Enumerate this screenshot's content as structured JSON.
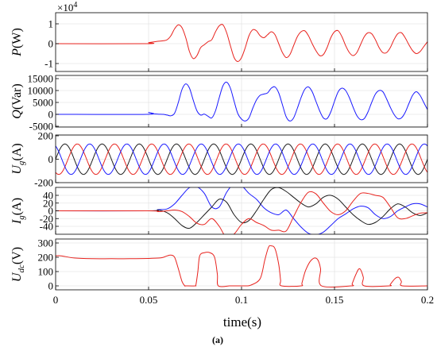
{
  "figure": {
    "caption": "(a)",
    "xlabel": "time(s)"
  },
  "colors": {
    "red": "#e8231e",
    "blue": "#1a1aff",
    "black": "#1a1a1a"
  },
  "chart_data": [
    {
      "type": "line",
      "ylabel_main": "P",
      "ylabel_unit": "(W)",
      "multiplier_base": "×10",
      "multiplier_exp": "4",
      "xlim": [
        0,
        0.2
      ],
      "ylim": [
        -1,
        1
      ],
      "yticks": [
        "1",
        "0",
        "-1"
      ],
      "grid": true,
      "series": [
        {
          "color": "red",
          "x": [
            0,
            0.049,
            0.05,
            0.052,
            0.055,
            0.058,
            0.06,
            0.062,
            0.064,
            0.066,
            0.068,
            0.07,
            0.072,
            0.074,
            0.076,
            0.078,
            0.08,
            0.082,
            0.084,
            0.086,
            0.088,
            0.09,
            0.092,
            0.094,
            0.096,
            0.098,
            0.1,
            0.102,
            0.104,
            0.106,
            0.108,
            0.11,
            0.112,
            0.114,
            0.116,
            0.118,
            0.12,
            0.122,
            0.124,
            0.126,
            0.128,
            0.13,
            0.132,
            0.134,
            0.136,
            0.138,
            0.14,
            0.142,
            0.144,
            0.146,
            0.148,
            0.15,
            0.152,
            0.154,
            0.156,
            0.158,
            0.16,
            0.162,
            0.164,
            0.166,
            0.168,
            0.17,
            0.172,
            0.174,
            0.176,
            0.178,
            0.18,
            0.182,
            0.184,
            0.186,
            0.188,
            0.19,
            0.192,
            0.194,
            0.196,
            0.198,
            0.2
          ],
          "y": [
            0,
            0,
            0.05,
            0.08,
            0.12,
            0.15,
            0.2,
            0.4,
            0.75,
            0.95,
            0.8,
            0.3,
            -0.4,
            -0.75,
            -0.6,
            -0.2,
            -0.05,
            0.1,
            0.2,
            0.6,
            0.9,
            0.95,
            0.55,
            -0.1,
            -0.7,
            -0.9,
            -0.7,
            -0.2,
            0.4,
            0.7,
            0.65,
            0.4,
            0.3,
            0.45,
            0.6,
            0.45,
            0.0,
            -0.45,
            -0.7,
            -0.55,
            -0.1,
            0.35,
            0.6,
            0.65,
            0.4,
            0.0,
            -0.35,
            -0.6,
            -0.55,
            -0.2,
            0.3,
            0.6,
            0.65,
            0.35,
            -0.1,
            -0.45,
            -0.6,
            -0.45,
            -0.05,
            0.35,
            0.55,
            0.5,
            0.2,
            -0.2,
            -0.45,
            -0.45,
            -0.2,
            0.2,
            0.5,
            0.55,
            0.3,
            -0.05,
            -0.35,
            -0.5,
            -0.4,
            -0.15,
            0.1
          ]
        }
      ]
    },
    {
      "type": "line",
      "ylabel_main": "Q",
      "ylabel_unit": "(Var)",
      "xlim": [
        0,
        0.2
      ],
      "ylim": [
        -5000,
        15000
      ],
      "yticks": [
        "15000",
        "10000",
        "5000",
        "0",
        "-5000"
      ],
      "grid": true,
      "series": [
        {
          "color": "blue",
          "x": [
            0,
            0.049,
            0.05,
            0.052,
            0.055,
            0.058,
            0.06,
            0.062,
            0.064,
            0.066,
            0.068,
            0.07,
            0.072,
            0.074,
            0.076,
            0.078,
            0.08,
            0.082,
            0.084,
            0.086,
            0.088,
            0.09,
            0.092,
            0.094,
            0.096,
            0.098,
            0.1,
            0.102,
            0.104,
            0.106,
            0.108,
            0.11,
            0.112,
            0.114,
            0.116,
            0.118,
            0.12,
            0.122,
            0.124,
            0.126,
            0.128,
            0.13,
            0.132,
            0.134,
            0.136,
            0.138,
            0.14,
            0.142,
            0.144,
            0.146,
            0.148,
            0.15,
            0.152,
            0.154,
            0.156,
            0.158,
            0.16,
            0.162,
            0.164,
            0.166,
            0.168,
            0.17,
            0.172,
            0.174,
            0.176,
            0.178,
            0.18,
            0.182,
            0.184,
            0.186,
            0.188,
            0.19,
            0.192,
            0.194,
            0.196,
            0.198,
            0.2
          ],
          "y": [
            0,
            0,
            800,
            300,
            100,
            0,
            -300,
            -600,
            500,
            5000,
            10500,
            12800,
            11000,
            6000,
            1500,
            -300,
            100,
            -800,
            -1500,
            1500,
            7000,
            12000,
            13500,
            11000,
            5500,
            300,
            -2000,
            -2800,
            -1500,
            2500,
            6000,
            8000,
            8500,
            9000,
            11000,
            11500,
            9000,
            4000,
            -1000,
            -2800,
            -1500,
            2500,
            7000,
            10500,
            11500,
            9500,
            5500,
            1500,
            -1500,
            -1800,
            1000,
            5500,
            9500,
            11000,
            10000,
            7000,
            3000,
            -500,
            -2200,
            -1800,
            1000,
            5000,
            8500,
            10000,
            9500,
            6500,
            3000,
            0,
            -1800,
            -1500,
            800,
            4500,
            8000,
            9500,
            8000,
            5000,
            2000
          ]
        }
      ]
    },
    {
      "type": "line",
      "ylabel_main": "U",
      "ylabel_sub": "g",
      "ylabel_unit": "(A)",
      "xlim": [
        0,
        0.2
      ],
      "ylim": [
        -200,
        200
      ],
      "yticks": [
        "200",
        "0",
        "-200"
      ],
      "grid": true,
      "sinusoid": {
        "amplitude": 130,
        "frequency_hz": 50,
        "phases_deg": [
          0,
          -120,
          120
        ]
      },
      "series": [
        {
          "color": "black"
        },
        {
          "color": "red"
        },
        {
          "color": "blue"
        }
      ]
    },
    {
      "type": "line",
      "ylabel_main": "I",
      "ylabel_sub": "g",
      "ylabel_unit": "(A)",
      "xlim": [
        0,
        0.2
      ],
      "ylim": [
        -60,
        60
      ],
      "yticks": [
        "40",
        "20",
        "0",
        "-20",
        "-40"
      ],
      "grid": true,
      "series": [
        {
          "color": "blue",
          "x": [
            0,
            0.05,
            0.055,
            0.06,
            0.064,
            0.068,
            0.072,
            0.076,
            0.08,
            0.084,
            0.088,
            0.092,
            0.096,
            0.1,
            0.104,
            0.108,
            0.112,
            0.116,
            0.12,
            0.124,
            0.128,
            0.132,
            0.136,
            0.14,
            0.144,
            0.148,
            0.152,
            0.156,
            0.16,
            0.164,
            0.168,
            0.172,
            0.176,
            0.18,
            0.184,
            0.188,
            0.192,
            0.196,
            0.2
          ],
          "y": [
            0,
            0,
            3,
            5,
            18,
            40,
            60,
            62,
            45,
            10,
            10,
            48,
            70,
            65,
            45,
            30,
            8,
            -5,
            -10,
            2,
            -20,
            -42,
            -58,
            -62,
            -55,
            -38,
            -20,
            -8,
            5,
            12,
            8,
            -10,
            -20,
            -15,
            0,
            10,
            18,
            18,
            10
          ]
        },
        {
          "color": "black",
          "x": [
            0,
            0.05,
            0.055,
            0.06,
            0.064,
            0.068,
            0.072,
            0.076,
            0.08,
            0.084,
            0.088,
            0.092,
            0.096,
            0.1,
            0.104,
            0.108,
            0.112,
            0.116,
            0.12,
            0.124,
            0.128,
            0.132,
            0.136,
            0.14,
            0.144,
            0.148,
            0.152,
            0.156,
            0.16,
            0.164,
            0.168,
            0.172,
            0.176,
            0.18,
            0.184,
            0.188,
            0.192,
            0.196,
            0.2
          ],
          "y": [
            0,
            0,
            2,
            -5,
            -20,
            -38,
            -45,
            -30,
            -10,
            10,
            30,
            22,
            -10,
            -30,
            -25,
            0,
            30,
            55,
            60,
            50,
            35,
            20,
            10,
            18,
            35,
            40,
            30,
            10,
            -10,
            -25,
            -35,
            -30,
            -15,
            5,
            18,
            10,
            -5,
            -12,
            -5
          ]
        },
        {
          "color": "red",
          "x": [
            0,
            0.05,
            0.055,
            0.06,
            0.064,
            0.068,
            0.072,
            0.076,
            0.08,
            0.084,
            0.088,
            0.092,
            0.096,
            0.1,
            0.104,
            0.108,
            0.112,
            0.116,
            0.12,
            0.124,
            0.128,
            0.132,
            0.136,
            0.14,
            0.144,
            0.148,
            0.152,
            0.156,
            0.16,
            0.164,
            0.168,
            0.172,
            0.176,
            0.18,
            0.184,
            0.188,
            0.192,
            0.196,
            0.2
          ],
          "y": [
            0,
            0,
            -2,
            0,
            2,
            -2,
            -15,
            -32,
            -35,
            -20,
            -40,
            -70,
            -60,
            -35,
            -20,
            -30,
            -38,
            -50,
            -50,
            -52,
            -15,
            22,
            48,
            44,
            20,
            -2,
            -10,
            0,
            25,
            45,
            45,
            40,
            35,
            10,
            -18,
            -20,
            -13,
            -6,
            -5
          ]
        }
      ]
    },
    {
      "type": "line",
      "ylabel_main": "U",
      "ylabel_sub": "dc",
      "ylabel_unit": "(V)",
      "xlim": [
        0,
        0.2
      ],
      "ylim": [
        -10,
        310
      ],
      "yticks": [
        "300",
        "200",
        "100",
        "0"
      ],
      "xticks": [
        "0",
        "0.05",
        "0.1",
        "0.15",
        "0.2"
      ],
      "grid": true,
      "series": [
        {
          "color": "red",
          "x": [
            0,
            0.003,
            0.01,
            0.02,
            0.03,
            0.04,
            0.05,
            0.056,
            0.058,
            0.06,
            0.062,
            0.064,
            0.066,
            0.068,
            0.0695,
            0.07,
            0.075,
            0.0755,
            0.0765,
            0.0775,
            0.08,
            0.083,
            0.0855,
            0.087,
            0.0875,
            0.0935,
            0.094,
            0.095,
            0.102,
            0.105,
            0.11,
            0.1125,
            0.1145,
            0.116,
            0.118,
            0.12,
            0.121,
            0.1215,
            0.132,
            0.1325,
            0.1345,
            0.1375,
            0.1405,
            0.1425,
            0.143,
            0.159,
            0.1595,
            0.1615,
            0.1635,
            0.1655,
            0.166,
            0.1795,
            0.18,
            0.1825,
            0.1845,
            0.186,
            0.1865,
            0.2
          ],
          "y": [
            210,
            210,
            195,
            190,
            190,
            190,
            192,
            195,
            200,
            210,
            215,
            200,
            120,
            30,
            0,
            0,
            0,
            10,
            100,
            210,
            232,
            232,
            200,
            80,
            0,
            0,
            0,
            0,
            0,
            5,
            50,
            180,
            270,
            280,
            260,
            150,
            40,
            0,
            0,
            20,
            110,
            180,
            190,
            120,
            0,
            0,
            15,
            80,
            120,
            60,
            0,
            0,
            10,
            50,
            60,
            30,
            0,
            0
          ]
        }
      ]
    }
  ]
}
